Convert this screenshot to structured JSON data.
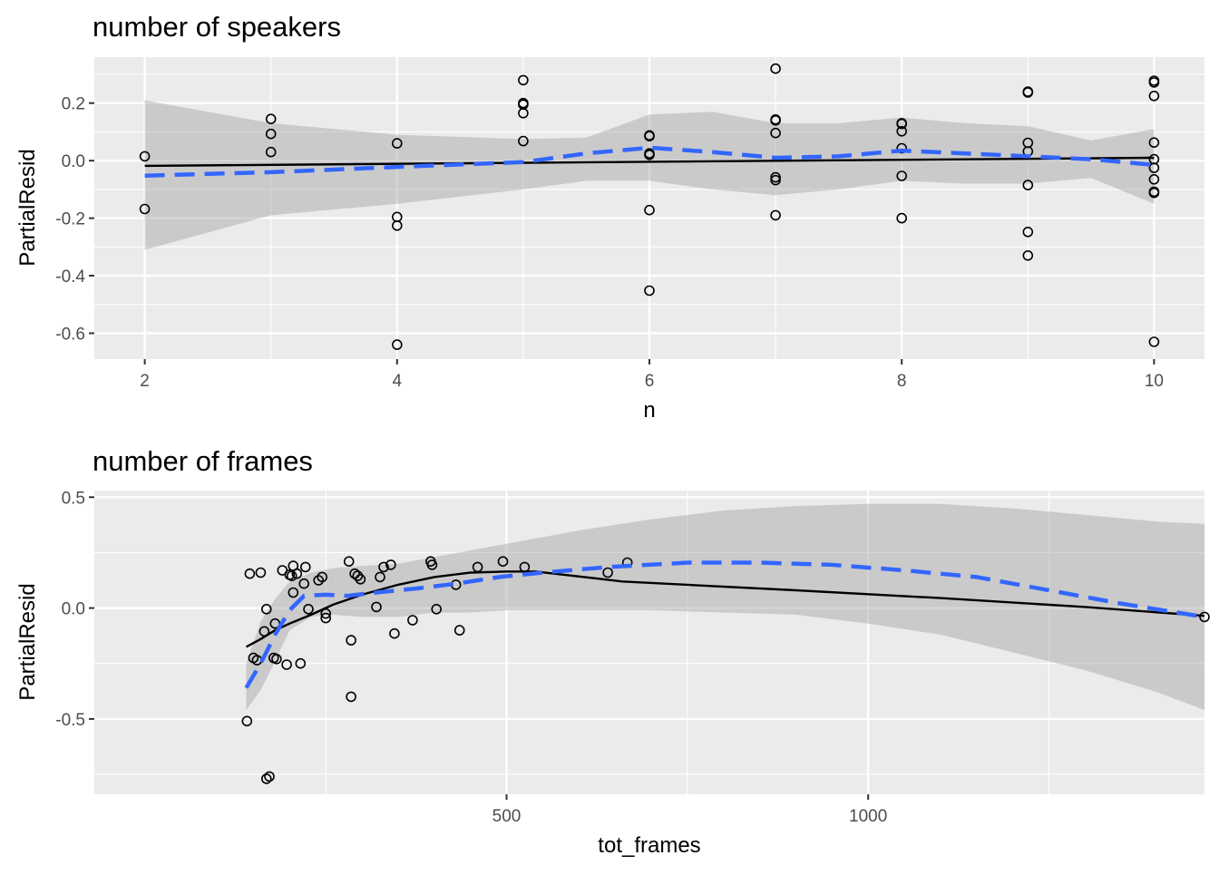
{
  "chart_data": [
    {
      "type": "scatter",
      "title": "number of speakers",
      "xlabel": "n",
      "ylabel": "PartialResid",
      "xlim": [
        1.6,
        10.4
      ],
      "ylim": [
        -0.69,
        0.36
      ],
      "xticks": [
        2,
        4,
        6,
        8,
        10
      ],
      "xticklabels": [
        "2",
        "4",
        "6",
        "8",
        "10"
      ],
      "yticks": [
        -0.6,
        -0.4,
        -0.2,
        0.0,
        0.2
      ],
      "yticklabels": [
        "-0.6",
        "-0.4",
        "-0.2",
        "0.0",
        "0.2"
      ],
      "xminor": [
        3,
        5,
        7,
        9
      ],
      "yminor": [
        -0.5,
        -0.3,
        -0.1,
        0.1,
        0.3
      ],
      "grid": true,
      "legend": "none",
      "points": [
        [
          2,
          0.015
        ],
        [
          2,
          -0.168
        ],
        [
          3,
          0.145
        ],
        [
          3,
          0.093
        ],
        [
          3,
          0.03
        ],
        [
          4,
          0.06
        ],
        [
          4,
          -0.196
        ],
        [
          4,
          -0.226
        ],
        [
          4,
          -0.64
        ],
        [
          5,
          0.28
        ],
        [
          5,
          0.2
        ],
        [
          5,
          0.195
        ],
        [
          5,
          0.165
        ],
        [
          5,
          0.068
        ],
        [
          6,
          0.088
        ],
        [
          6,
          0.085
        ],
        [
          6,
          0.025
        ],
        [
          6,
          0.02
        ],
        [
          6,
          -0.172
        ],
        [
          6,
          -0.452
        ],
        [
          7,
          0.32
        ],
        [
          7,
          0.143
        ],
        [
          7,
          0.14
        ],
        [
          7,
          0.096
        ],
        [
          7,
          -0.058
        ],
        [
          7,
          -0.068
        ],
        [
          7,
          -0.19
        ],
        [
          8,
          0.13
        ],
        [
          8,
          0.128
        ],
        [
          8,
          0.102
        ],
        [
          8,
          0.043
        ],
        [
          8,
          -0.053
        ],
        [
          8,
          -0.2
        ],
        [
          9,
          0.24
        ],
        [
          9,
          0.237
        ],
        [
          9,
          0.062
        ],
        [
          9,
          0.032
        ],
        [
          9,
          -0.085
        ],
        [
          9,
          -0.248
        ],
        [
          9,
          -0.33
        ],
        [
          10,
          0.278
        ],
        [
          10,
          0.272
        ],
        [
          10,
          0.225
        ],
        [
          10,
          0.063
        ],
        [
          10,
          0.005
        ],
        [
          10,
          -0.025
        ],
        [
          10,
          -0.065
        ],
        [
          10,
          -0.108
        ],
        [
          10,
          -0.112
        ],
        [
          10,
          -0.63
        ]
      ],
      "linear_fit": [
        [
          2,
          -0.018
        ],
        [
          10,
          0.01
        ]
      ],
      "smooth_fit": [
        [
          2,
          -0.052
        ],
        [
          3,
          -0.04
        ],
        [
          4,
          -0.022
        ],
        [
          5,
          -0.005
        ],
        [
          5.5,
          0.025
        ],
        [
          6,
          0.045
        ],
        [
          6.5,
          0.03
        ],
        [
          7,
          0.01
        ],
        [
          7.5,
          0.015
        ],
        [
          8,
          0.035
        ],
        [
          8.5,
          0.025
        ],
        [
          9,
          0.015
        ],
        [
          9.5,
          0.005
        ],
        [
          10,
          -0.015
        ]
      ],
      "confidence_band": {
        "x": [
          2,
          3,
          4,
          5,
          5.5,
          6,
          6.5,
          7,
          7.5,
          8,
          8.5,
          9,
          9.5,
          10
        ],
        "upper": [
          0.21,
          0.13,
          0.09,
          0.075,
          0.08,
          0.16,
          0.17,
          0.13,
          0.13,
          0.15,
          0.13,
          0.12,
          0.07,
          0.11
        ],
        "lower": [
          -0.31,
          -0.19,
          -0.15,
          -0.1,
          -0.07,
          -0.07,
          -0.1,
          -0.12,
          -0.1,
          -0.07,
          -0.08,
          -0.08,
          -0.06,
          -0.15
        ]
      }
    },
    {
      "type": "scatter",
      "title": "number of frames",
      "xlabel": "tot_frames",
      "ylabel": "PartialResid",
      "xlim": [
        -70,
        1465
      ],
      "ylim": [
        -0.84,
        0.53
      ],
      "xticks": [
        500,
        1000
      ],
      "xticklabels": [
        "500",
        "1000"
      ],
      "yticks": [
        -0.5,
        0.0,
        0.5
      ],
      "yticklabels": [
        "-0.5",
        "0.0",
        "0.5"
      ],
      "xminor": [
        250,
        750,
        1250
      ],
      "yminor": [
        -0.75,
        -0.25,
        0.25
      ],
      "grid": true,
      "legend": "none",
      "points": [
        [
          141,
          -0.51
        ],
        [
          145,
          0.155
        ],
        [
          150,
          -0.225
        ],
        [
          155,
          -0.235
        ],
        [
          160,
          0.16
        ],
        [
          165,
          -0.105
        ],
        [
          168,
          -0.77
        ],
        [
          168,
          -0.005
        ],
        [
          172,
          -0.76
        ],
        [
          178,
          -0.225
        ],
        [
          180,
          -0.07
        ],
        [
          182,
          -0.23
        ],
        [
          190,
          0.17
        ],
        [
          196,
          -0.255
        ],
        [
          200,
          0.15
        ],
        [
          203,
          0.145
        ],
        [
          205,
          0.07
        ],
        [
          205,
          0.19
        ],
        [
          210,
          0.155
        ],
        [
          215,
          -0.25
        ],
        [
          220,
          0.11
        ],
        [
          222,
          0.185
        ],
        [
          226,
          -0.005
        ],
        [
          240,
          0.125
        ],
        [
          245,
          0.14
        ],
        [
          250,
          -0.025
        ],
        [
          250,
          -0.045
        ],
        [
          282,
          0.21
        ],
        [
          285,
          -0.145
        ],
        [
          285,
          -0.4
        ],
        [
          290,
          0.155
        ],
        [
          294,
          0.145
        ],
        [
          298,
          0.13
        ],
        [
          320,
          0.005
        ],
        [
          325,
          0.14
        ],
        [
          330,
          0.185
        ],
        [
          340,
          0.195
        ],
        [
          345,
          -0.115
        ],
        [
          370,
          -0.055
        ],
        [
          395,
          0.21
        ],
        [
          397,
          0.195
        ],
        [
          403,
          -0.005
        ],
        [
          430,
          0.105
        ],
        [
          435,
          -0.1
        ],
        [
          460,
          0.185
        ],
        [
          495,
          0.21
        ],
        [
          525,
          0.185
        ],
        [
          640,
          0.16
        ],
        [
          667,
          0.205
        ],
        [
          1465,
          -0.04
        ]
      ],
      "loess_fit": [
        [
          140,
          -0.175
        ],
        [
          160,
          -0.14
        ],
        [
          180,
          -0.1
        ],
        [
          200,
          -0.07
        ],
        [
          230,
          -0.03
        ],
        [
          260,
          0.015
        ],
        [
          300,
          0.06
        ],
        [
          350,
          0.105
        ],
        [
          400,
          0.14
        ],
        [
          450,
          0.16
        ],
        [
          500,
          0.165
        ],
        [
          540,
          0.165
        ],
        [
          580,
          0.15
        ],
        [
          620,
          0.135
        ],
        [
          660,
          0.12
        ],
        [
          900,
          0.08
        ],
        [
          1100,
          0.045
        ],
        [
          1300,
          0.005
        ],
        [
          1465,
          -0.035
        ]
      ],
      "smooth_fit": [
        [
          140,
          -0.36
        ],
        [
          160,
          -0.25
        ],
        [
          180,
          -0.12
        ],
        [
          200,
          -0.01
        ],
        [
          220,
          0.055
        ],
        [
          250,
          0.06
        ],
        [
          280,
          0.055
        ],
        [
          320,
          0.07
        ],
        [
          380,
          0.09
        ],
        [
          430,
          0.11
        ],
        [
          490,
          0.14
        ],
        [
          550,
          0.16
        ],
        [
          640,
          0.185
        ],
        [
          750,
          0.205
        ],
        [
          850,
          0.205
        ],
        [
          950,
          0.195
        ],
        [
          1050,
          0.17
        ],
        [
          1150,
          0.14
        ],
        [
          1250,
          0.08
        ],
        [
          1350,
          0.02
        ],
        [
          1465,
          -0.04
        ]
      ],
      "confidence_band": {
        "x": [
          140,
          160,
          180,
          200,
          230,
          260,
          300,
          350,
          400,
          450,
          500,
          550,
          600,
          700,
          800,
          900,
          1000,
          1100,
          1200,
          1300,
          1400,
          1465
        ],
        "upper": [
          -0.25,
          -0.06,
          0.04,
          0.12,
          0.16,
          0.18,
          0.19,
          0.2,
          0.23,
          0.26,
          0.29,
          0.32,
          0.35,
          0.4,
          0.44,
          0.46,
          0.47,
          0.47,
          0.45,
          0.42,
          0.39,
          0.38
        ],
        "lower": [
          -0.46,
          -0.37,
          -0.24,
          -0.1,
          -0.04,
          -0.03,
          -0.04,
          -0.04,
          -0.02,
          -0.02,
          -0.01,
          -0.01,
          -0.01,
          -0.01,
          -0.02,
          -0.03,
          -0.07,
          -0.12,
          -0.2,
          -0.28,
          -0.38,
          -0.46
        ]
      }
    }
  ]
}
